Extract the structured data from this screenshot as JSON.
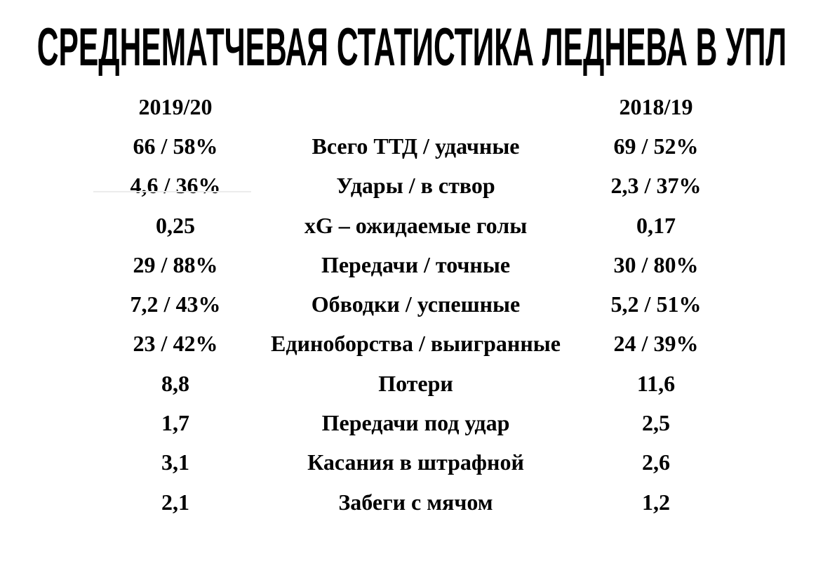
{
  "title": "СРЕДНЕМАТЧЕВАЯ СТАТИСТИКА ЛЕДНЕВА В УПЛ",
  "table": {
    "season_left": "2019/20",
    "season_right": "2018/19",
    "rows": [
      {
        "left": "66 / 58%",
        "label": "Всего ТТД / удачные",
        "right": "69 / 52%"
      },
      {
        "left": "4,6 / 36%",
        "label": "Удары / в створ",
        "right": "2,3 / 37%"
      },
      {
        "left": "0,25",
        "label": "xG – ожидаемые голы",
        "right": "0,17"
      },
      {
        "left": "29 / 88%",
        "label": "Передачи / точные",
        "right": "30 / 80%"
      },
      {
        "left": "7,2 / 43%",
        "label": "Обводки / успешные",
        "right": "5,2 / 51%"
      },
      {
        "left": "23 / 42%",
        "label": "Единоборства / выигранные",
        "right": "24 / 39%"
      },
      {
        "left": "8,8",
        "label": "Потери",
        "right": "11,6"
      },
      {
        "left": "1,7",
        "label": "Передачи под удар",
        "right": "2,5"
      },
      {
        "left": "3,1",
        "label": "Касания в штрафной",
        "right": "2,6"
      },
      {
        "left": "2,1",
        "label": "Забеги с мячом",
        "right": "1,2"
      }
    ]
  },
  "chart_data": {
    "type": "table",
    "title": "СРЕДНЕМАТЧЕВАЯ СТАТИСТИКА ЛЕДНЕВА В УПЛ",
    "columns": [
      "2019/20",
      "",
      "2018/19"
    ],
    "rows": [
      [
        "66 / 58%",
        "Всего ТТД / удачные",
        "69 / 52%"
      ],
      [
        "4,6 / 36%",
        "Удары / в створ",
        "2,3 / 37%"
      ],
      [
        "0,25",
        "xG – ожидаемые голы",
        "0,17"
      ],
      [
        "29 / 88%",
        "Передачи / точные",
        "30 / 80%"
      ],
      [
        "7,2 / 43%",
        "Обводки / успешные",
        "5,2 / 51%"
      ],
      [
        "23 / 42%",
        "Единоборства / выигранные",
        "24 / 39%"
      ],
      [
        "8,8",
        "Потери",
        "11,6"
      ],
      [
        "1,7",
        "Передачи под удар",
        "2,5"
      ],
      [
        "3,1",
        "Касания в штрафной",
        "2,6"
      ],
      [
        "2,1",
        "Забеги с мячом",
        "1,2"
      ]
    ]
  },
  "colors": {
    "text": "#000000",
    "background": "#ffffff",
    "divider_line": "#ececec"
  }
}
